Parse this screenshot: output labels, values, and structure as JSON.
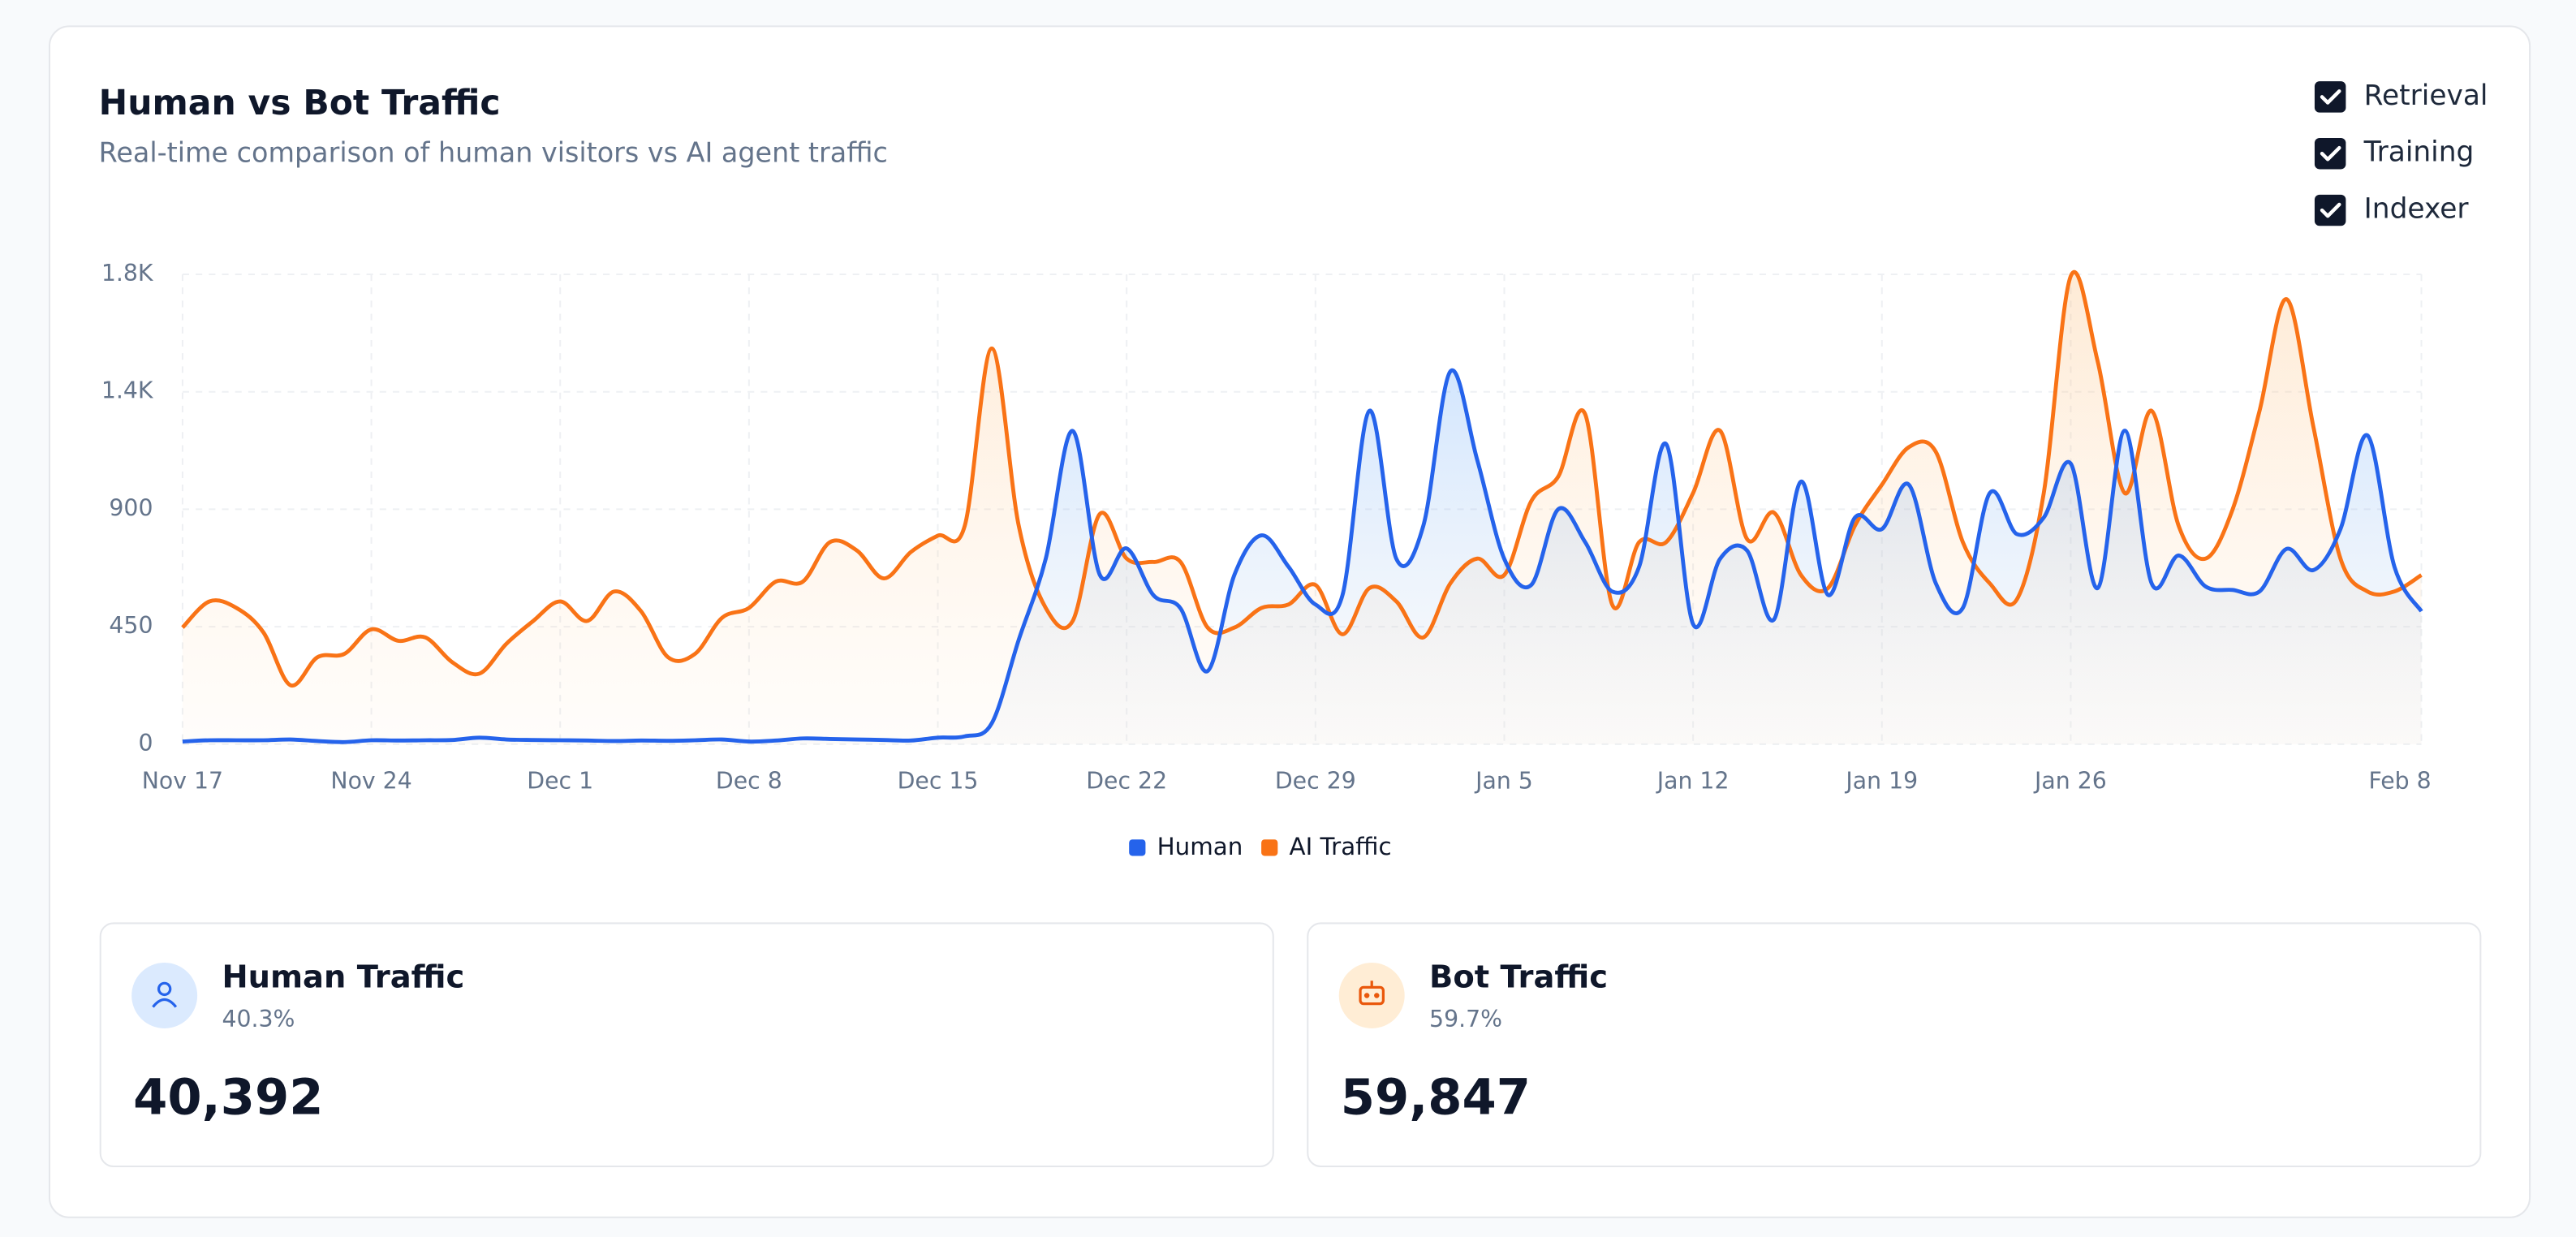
{
  "chart_data": {
    "type": "line",
    "title": "Human vs Bot Traffic",
    "subtitle": "Real-time comparison of human visitors vs AI agent traffic",
    "categories": [
      "Nov 17",
      null,
      null,
      null,
      null,
      null,
      null,
      "Nov 24",
      null,
      null,
      null,
      null,
      null,
      null,
      "Dec 1",
      null,
      null,
      null,
      null,
      null,
      null,
      "Dec 8",
      null,
      null,
      null,
      null,
      null,
      null,
      "Dec 15",
      null,
      null,
      null,
      null,
      null,
      null,
      "Dec 22",
      null,
      null,
      null,
      null,
      null,
      null,
      "Dec 29",
      null,
      null,
      null,
      null,
      null,
      null,
      "Jan 5",
      null,
      null,
      null,
      null,
      null,
      null,
      "Jan 12",
      null,
      null,
      null,
      null,
      null,
      null,
      "Jan 19",
      null,
      null,
      null,
      null,
      null,
      null,
      "Jan 26",
      null,
      null,
      null,
      null,
      null,
      null,
      null,
      null,
      null,
      null,
      null,
      null,
      "Feb 8"
    ],
    "ylim": [
      0,
      1800
    ],
    "yticks": [
      0,
      450,
      900,
      {
        "value": 1350,
        "label": "1.4K"
      },
      {
        "value": 1800,
        "label": "1.8K"
      }
    ],
    "grid": true,
    "series": [
      {
        "name": "Human",
        "color": "#2563eb",
        "values": [
          10,
          15,
          15,
          15,
          18,
          12,
          8,
          15,
          14,
          15,
          16,
          25,
          18,
          16,
          15,
          14,
          12,
          14,
          13,
          15,
          18,
          10,
          14,
          22,
          20,
          18,
          16,
          14,
          25,
          30,
          80,
          400,
          710,
          1200,
          650,
          750,
          570,
          520,
          280,
          650,
          800,
          680,
          535,
          570,
          1277,
          710,
          837,
          1428,
          1088,
          710,
          610,
          900,
          774,
          585,
          680,
          1150,
          460,
          710,
          742,
          478,
          1006,
          572,
          868,
          824,
          994,
          616,
          522,
          962,
          805,
          868,
          1075,
          598,
          1201,
          616,
          723,
          604,
          591,
          585,
          748,
          667,
          824,
          1183,
          680,
          509
        ]
      },
      {
        "name": "AI Traffic",
        "color": "#f97316",
        "values": [
          447,
          547,
          522,
          428,
          226,
          333,
          346,
          440,
          396,
          409,
          314,
          270,
          384,
          472,
          547,
          472,
          585,
          509,
          333,
          346,
          484,
          522,
          623,
          623,
          774,
          742,
          635,
          736,
          799,
          837,
          1516,
          837,
          522,
          472,
          881,
          711,
          698,
          698,
          447,
          447,
          522,
          535,
          610,
          421,
          598,
          547,
          409,
          616,
          711,
          648,
          931,
          1025,
          1264,
          535,
          774,
          774,
          962,
          1201,
          786,
          887,
          648,
          598,
          837,
          994,
          1138,
          1120,
          774,
          616,
          554,
          962,
          1793,
          1466,
          962,
          1277,
          837,
          711,
          899,
          1277,
          1705,
          1214,
          711,
          585,
          585,
          648
        ]
      }
    ]
  },
  "filters": [
    "Retrieval",
    "Training",
    "Indexer"
  ],
  "stats": [
    {
      "title": "Human Traffic",
      "share": "40.3%",
      "total": "40,392"
    },
    {
      "title": "Bot Traffic",
      "share": "59.7%",
      "total": "59,847"
    }
  ]
}
